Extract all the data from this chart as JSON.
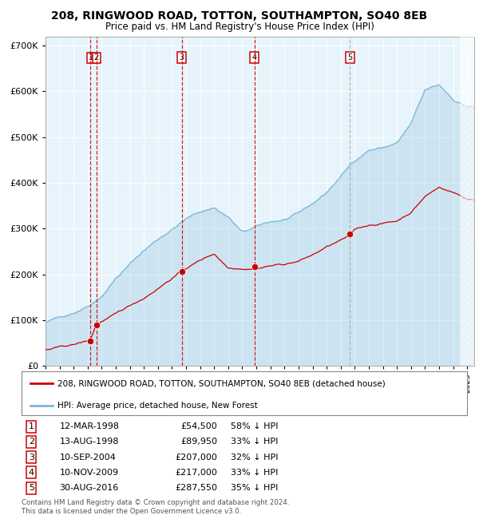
{
  "title": "208, RINGWOOD ROAD, TOTTON, SOUTHAMPTON, SO40 8EB",
  "subtitle": "Price paid vs. HM Land Registry's House Price Index (HPI)",
  "legend_line1": "208, RINGWOOD ROAD, TOTTON, SOUTHAMPTON, SO40 8EB (detached house)",
  "legend_line2": "HPI: Average price, detached house, New Forest",
  "footer1": "Contains HM Land Registry data © Crown copyright and database right 2024.",
  "footer2": "This data is licensed under the Open Government Licence v3.0.",
  "sales": [
    {
      "num": 1,
      "date": "12-MAR-1998",
      "year": 1998.19,
      "price": 54500,
      "pct": "58% ↓ HPI"
    },
    {
      "num": 2,
      "date": "13-AUG-1998",
      "year": 1998.62,
      "price": 89950,
      "pct": "33% ↓ HPI"
    },
    {
      "num": 3,
      "date": "10-SEP-2004",
      "year": 2004.69,
      "price": 207000,
      "pct": "32% ↓ HPI"
    },
    {
      "num": 4,
      "date": "10-NOV-2009",
      "year": 2009.86,
      "price": 217000,
      "pct": "33% ↓ HPI"
    },
    {
      "num": 5,
      "date": "30-AUG-2016",
      "year": 2016.66,
      "price": 287550,
      "pct": "35% ↓ HPI"
    }
  ],
  "hpi_color": "#7ab8d9",
  "hpi_fill_color": "#d6eaf8",
  "price_color": "#cc0000",
  "dot_color": "#cc0000",
  "vline_color_red": "#cc0000",
  "vline_color_gray": "#aaaaaa",
  "bg_color": "#e8f4fb",
  "box_color": "#cc0000",
  "ylim": [
    0,
    720000
  ],
  "xlim_start": 1995.0,
  "xlim_end": 2025.5,
  "hpi_control_years": [
    1995,
    1996,
    1997,
    1998,
    1999,
    2000,
    2001,
    2002,
    2003,
    2004,
    2005,
    2006,
    2007,
    2008,
    2009,
    2010,
    2011,
    2012,
    2013,
    2014,
    2015,
    2016,
    2017,
    2018,
    2019,
    2020,
    2021,
    2022,
    2023,
    2024,
    2025
  ],
  "hpi_control_vals": [
    95000,
    105000,
    118000,
    135000,
    160000,
    200000,
    230000,
    260000,
    285000,
    308000,
    330000,
    345000,
    355000,
    335000,
    300000,
    310000,
    320000,
    325000,
    335000,
    355000,
    380000,
    415000,
    450000,
    475000,
    480000,
    490000,
    530000,
    600000,
    610000,
    580000,
    565000
  ],
  "red_control_years": [
    1995,
    1997,
    1998.19,
    1998.62,
    2000,
    2002,
    2004.69,
    2006,
    2007,
    2008,
    2009.86,
    2011,
    2012,
    2013,
    2014,
    2015,
    2016.66,
    2017,
    2018,
    2019,
    2020,
    2021,
    2022,
    2023,
    2024,
    2025
  ],
  "red_control_vals": [
    35000,
    45000,
    54500,
    89950,
    110000,
    145000,
    207000,
    230000,
    245000,
    215000,
    217000,
    225000,
    228000,
    235000,
    248000,
    265000,
    287550,
    300000,
    310000,
    315000,
    320000,
    340000,
    375000,
    395000,
    385000,
    370000
  ]
}
